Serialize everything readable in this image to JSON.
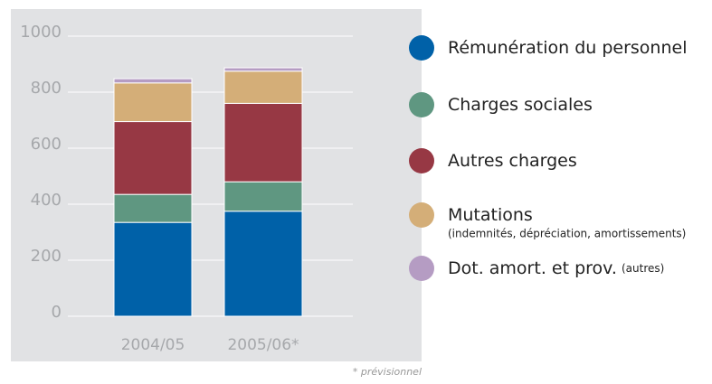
{
  "chart_data": {
    "type": "stacked_bar",
    "categories": [
      "2004/05",
      "2005/06*"
    ],
    "series": [
      {
        "name": "Rémunération du personnel",
        "color": "#0061a8",
        "values": [
          335,
          375
        ]
      },
      {
        "name": "Charges sociales",
        "color": "#5f9781",
        "values": [
          100,
          105
        ]
      },
      {
        "name": "Autres charges",
        "color": "#973844",
        "values": [
          260,
          280
        ]
      },
      {
        "name": "Mutations",
        "note": "(indemnités, dépréciation, amortissements)",
        "color": "#d4ae78",
        "values": [
          138,
          115
        ]
      },
      {
        "name": "Dot. amort. et prov.",
        "note": "(autres)",
        "color": "#b59cc3",
        "values": [
          15,
          12
        ]
      }
    ],
    "ylim": [
      0,
      1000
    ],
    "yticks": [
      0,
      200,
      400,
      600,
      800,
      1000
    ],
    "grid": true,
    "footnote": "* prévisionnel"
  }
}
